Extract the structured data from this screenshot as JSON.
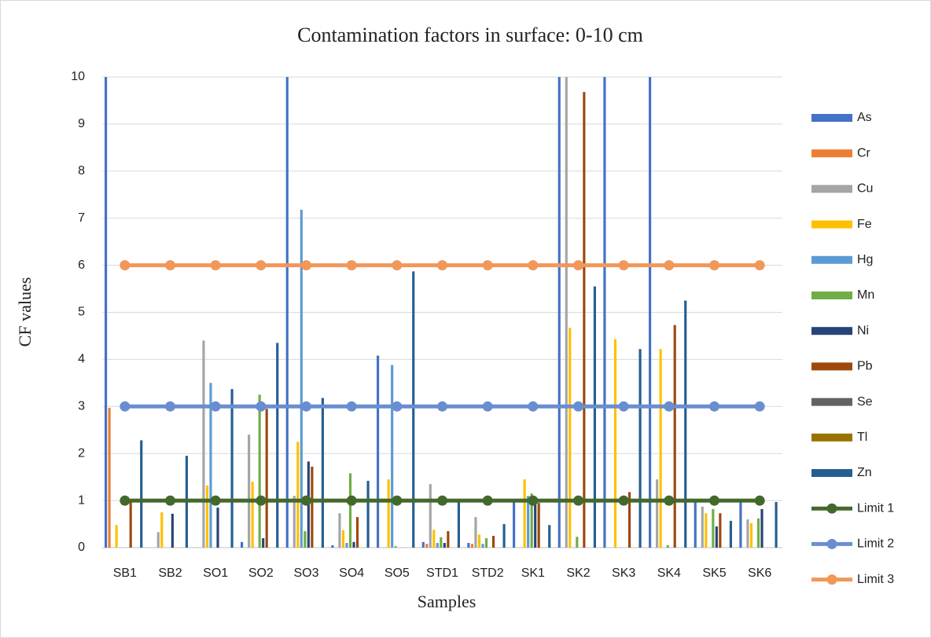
{
  "chart_data": {
    "type": "bar",
    "title": "Contamination factors in surface: 0-10 cm",
    "x_label": "Samples",
    "y_label": "CF values",
    "categories": [
      "SB1",
      "SB2",
      "SO1",
      "SO2",
      "SO3",
      "SO4",
      "SO5",
      "STD1",
      "STD2",
      "SK1",
      "SK2",
      "SK3",
      "SK4",
      "SK5",
      "SK6"
    ],
    "ylim": [
      0,
      10
    ],
    "yticks": [
      0,
      1,
      2,
      3,
      4,
      5,
      6,
      7,
      8,
      9,
      10
    ],
    "grid": true,
    "legend": "right",
    "series": [
      {
        "name": "As",
        "color": "#4472c4",
        "values": [
          10,
          0,
          0,
          0.12,
          10,
          0.05,
          4.08,
          0.12,
          0.1,
          1.0,
          10,
          10,
          10,
          1.0,
          1.0
        ]
      },
      {
        "name": "Cr",
        "color": "#ed7d31",
        "values": [
          2.97,
          0,
          0,
          0,
          0,
          0,
          0,
          0.08,
          0.08,
          0,
          0,
          0,
          0,
          0,
          0
        ]
      },
      {
        "name": "Cu",
        "color": "#a5a5a5",
        "values": [
          0,
          0.33,
          4.4,
          2.4,
          1.1,
          0.73,
          0,
          1.35,
          0.65,
          0,
          10,
          0,
          1.45,
          0.87,
          0.6
        ]
      },
      {
        "name": "Fe",
        "color": "#ffc000",
        "values": [
          0.48,
          0.75,
          1.32,
          1.4,
          2.25,
          0.37,
          1.45,
          0.38,
          0.28,
          1.45,
          4.67,
          4.43,
          4.22,
          0.73,
          0.52
        ]
      },
      {
        "name": "Hg",
        "color": "#5b9bd5",
        "values": [
          0,
          0,
          3.5,
          0,
          7.18,
          0.1,
          3.88,
          0.1,
          0.08,
          1.1,
          0,
          0,
          0,
          0,
          0
        ]
      },
      {
        "name": "Mn",
        "color": "#70ad47",
        "values": [
          0,
          0,
          0,
          3.25,
          0.35,
          1.58,
          0.03,
          0.22,
          0.2,
          1.15,
          0.23,
          0,
          0.05,
          0.82,
          0.62
        ]
      },
      {
        "name": "Ni",
        "color": "#264478",
        "values": [
          0,
          0.72,
          0.85,
          0.2,
          1.83,
          0.12,
          0,
          0.1,
          0,
          1.0,
          0,
          0,
          0,
          0.45,
          0.82
        ]
      },
      {
        "name": "Pb",
        "color": "#9e480e",
        "values": [
          1.0,
          0,
          0,
          2.95,
          1.72,
          0.65,
          0,
          0.35,
          0.25,
          0.95,
          9.68,
          1.18,
          4.73,
          0.73,
          0
        ]
      },
      {
        "name": "Se",
        "color": "#636363",
        "values": [
          0,
          0,
          0,
          0,
          0,
          0,
          0,
          0,
          0,
          0,
          0,
          0,
          0,
          0,
          0
        ]
      },
      {
        "name": "Tl",
        "color": "#997300",
        "values": [
          0,
          0,
          0,
          0,
          0,
          0,
          0,
          0,
          0,
          0,
          0,
          0,
          0,
          0,
          0
        ]
      },
      {
        "name": "Zn",
        "color": "#255e91",
        "values": [
          2.28,
          1.95,
          3.37,
          4.35,
          3.18,
          1.42,
          5.87,
          1.0,
          0.5,
          0.48,
          5.55,
          4.22,
          5.25,
          0.57,
          0.97
        ]
      },
      {
        "name": "Limit 1",
        "type": "line",
        "color": "#43682b",
        "values": [
          1,
          1,
          1,
          1,
          1,
          1,
          1,
          1,
          1,
          1,
          1,
          1,
          1,
          1,
          1
        ]
      },
      {
        "name": "Limit 2",
        "type": "line",
        "color": "#698ed0",
        "values": [
          3,
          3,
          3,
          3,
          3,
          3,
          3,
          3,
          3,
          3,
          3,
          3,
          3,
          3,
          3
        ]
      },
      {
        "name": "Limit 3",
        "type": "line",
        "color": "#f1975a",
        "values": [
          6,
          6,
          6,
          6,
          6,
          6,
          6,
          6,
          6,
          6,
          6,
          6,
          6,
          6,
          6
        ]
      }
    ]
  }
}
